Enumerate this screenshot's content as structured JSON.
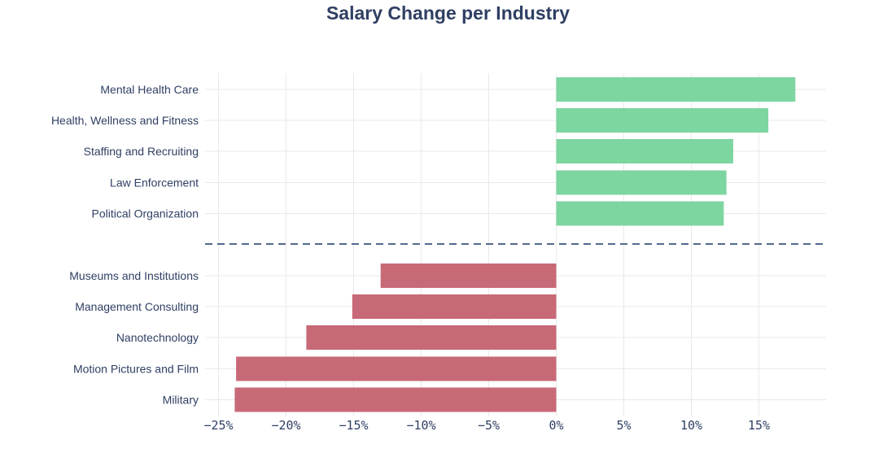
{
  "chart_data": {
    "type": "bar",
    "orientation": "horizontal",
    "title": "Salary Change per Industry",
    "xlabel": "",
    "ylabel": "",
    "xlim": [
      -26,
      20
    ],
    "x_ticks": [
      -25,
      -20,
      -15,
      -10,
      -5,
      0,
      5,
      10,
      15
    ],
    "x_tick_labels": [
      "−25%",
      "−20%",
      "−15%",
      "−10%",
      "−5%",
      "0%",
      "5%",
      "10%",
      "15%"
    ],
    "grid": true,
    "categories": [
      "Mental Health Care",
      "Health, Wellness and Fitness",
      "Staffing and Recruiting",
      "Law Enforcement",
      "Political Organization",
      "Museums and Institutions",
      "Management Consulting",
      "Nanotechnology",
      "Motion Pictures and Film",
      "Military"
    ],
    "values": [
      17.7,
      15.7,
      13.1,
      12.6,
      12.4,
      -13.0,
      -15.1,
      -18.5,
      -23.7,
      -23.8
    ],
    "colors": {
      "positive": "#7dd5a0",
      "negative": "#c86977",
      "separator": "#54698d",
      "grid": "#e9e9e9",
      "text": "#2f3f63"
    }
  }
}
